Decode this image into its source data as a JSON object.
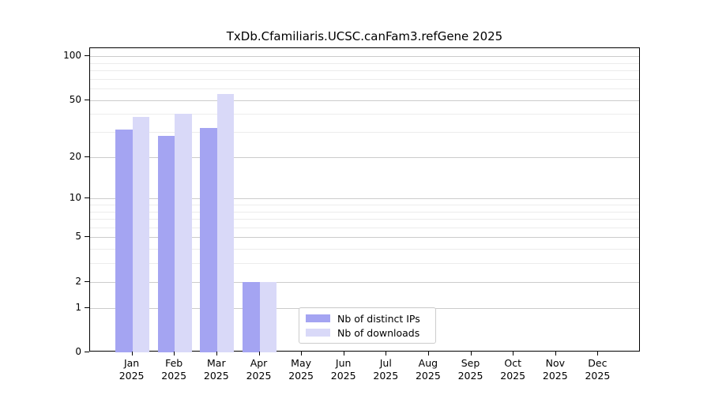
{
  "chart_data": {
    "type": "bar",
    "title": "TxDb.Cfamiliaris.UCSC.canFam3.refGene 2025",
    "categories": [
      "Jan",
      "Feb",
      "Mar",
      "Apr",
      "May",
      "Jun",
      "Jul",
      "Aug",
      "Sep",
      "Oct",
      "Nov",
      "Dec"
    ],
    "category_year": "2025",
    "series": [
      {
        "name": "Nb of distinct IPs",
        "color": "#a4a4f2",
        "values": [
          31,
          28,
          32,
          2,
          0,
          0,
          0,
          0,
          0,
          0,
          0,
          0
        ]
      },
      {
        "name": "Nb of downloads",
        "color": "#d9d9f8",
        "values": [
          38,
          40,
          55,
          2,
          0,
          0,
          0,
          0,
          0,
          0,
          0,
          0
        ]
      }
    ],
    "yscale": "log1p",
    "y_ticks": [
      0,
      1,
      2,
      5,
      10,
      20,
      50,
      100
    ],
    "y_minor_ticks": [
      3,
      4,
      6,
      7,
      8,
      9,
      30,
      40,
      60,
      70,
      80,
      90
    ],
    "ylim": [
      0,
      113
    ],
    "xlabel": "",
    "ylabel": "",
    "grid": "horizontal",
    "legend_position": "lower center",
    "colors": {
      "axis": "#000000",
      "grid_major": "#cccccc",
      "grid_minor": "#ececec",
      "background": "#ffffff"
    }
  }
}
